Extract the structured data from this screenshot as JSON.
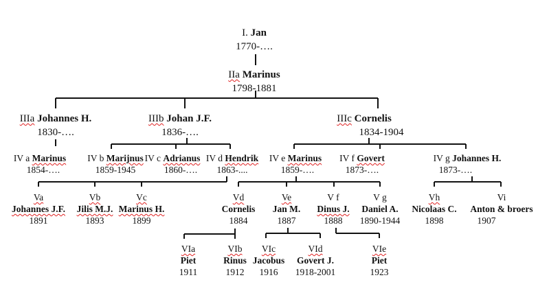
{
  "generations": [
    {
      "label": "I.",
      "name": "Jan",
      "years": "1770-…."
    },
    {
      "label": "IIa",
      "name": "Marinus",
      "years": "1798-1881"
    },
    {
      "label": "IIIa",
      "name": "Johannes H.",
      "years": "1830-…."
    },
    {
      "label": "IIIb",
      "name": "Johan J.F.",
      "years": "1836-…."
    },
    {
      "label": "IIIc",
      "name": "Cornelis",
      "years": "1834-1904"
    },
    {
      "label": "IV a",
      "name": "Marinus",
      "years": "1854-…."
    },
    {
      "label": "IV b",
      "name": "Marijnus",
      "years": "1859-1945"
    },
    {
      "label": "IV c",
      "name": "Adrianus",
      "years": "1860-…."
    },
    {
      "label": "IV d",
      "name": "Hendrik",
      "years": "1863-...."
    },
    {
      "label": "IV e",
      "name": "Marinus",
      "years": "1859-…."
    },
    {
      "label": "IV f",
      "name": "Govert",
      "years": "1873-…."
    },
    {
      "label": "IV g",
      "name": "Johannes H.",
      "years": "1873-…."
    },
    {
      "label": "Va",
      "name": "Johannes J.F.",
      "years": "1891"
    },
    {
      "label": "Vb",
      "name": "Jilis M.J.",
      "years": "1893"
    },
    {
      "label": "Vc",
      "name": "Marinus H.",
      "years": "1899"
    },
    {
      "label": "Vd",
      "name": "Cornelis",
      "years": "1884"
    },
    {
      "label": "Ve",
      "name": "Jan M.",
      "years": "1887"
    },
    {
      "label": "V f",
      "name": "Dinus J.",
      "years": "1888"
    },
    {
      "label": "V g",
      "name": "Daniel A.",
      "years": "1890-1944"
    },
    {
      "label": "Vh",
      "name": "Nicolaas C.",
      "years": "1898"
    },
    {
      "label": "Vi",
      "name": "Anton & broers",
      "years": "1907"
    },
    {
      "label": "VIa",
      "name": "Piet",
      "years": "1911"
    },
    {
      "label": "VIb",
      "name": "Rinus",
      "years": "1912"
    },
    {
      "label": "VIc",
      "name": "Jacobus",
      "years": "1916"
    },
    {
      "label": "VId",
      "name": "Govert J.",
      "years": "1918-2001"
    },
    {
      "label": "VIe",
      "name": "Piet",
      "years": "1923"
    }
  ],
  "colors": {
    "line": "#111111",
    "spellcheck": "#e02020"
  }
}
